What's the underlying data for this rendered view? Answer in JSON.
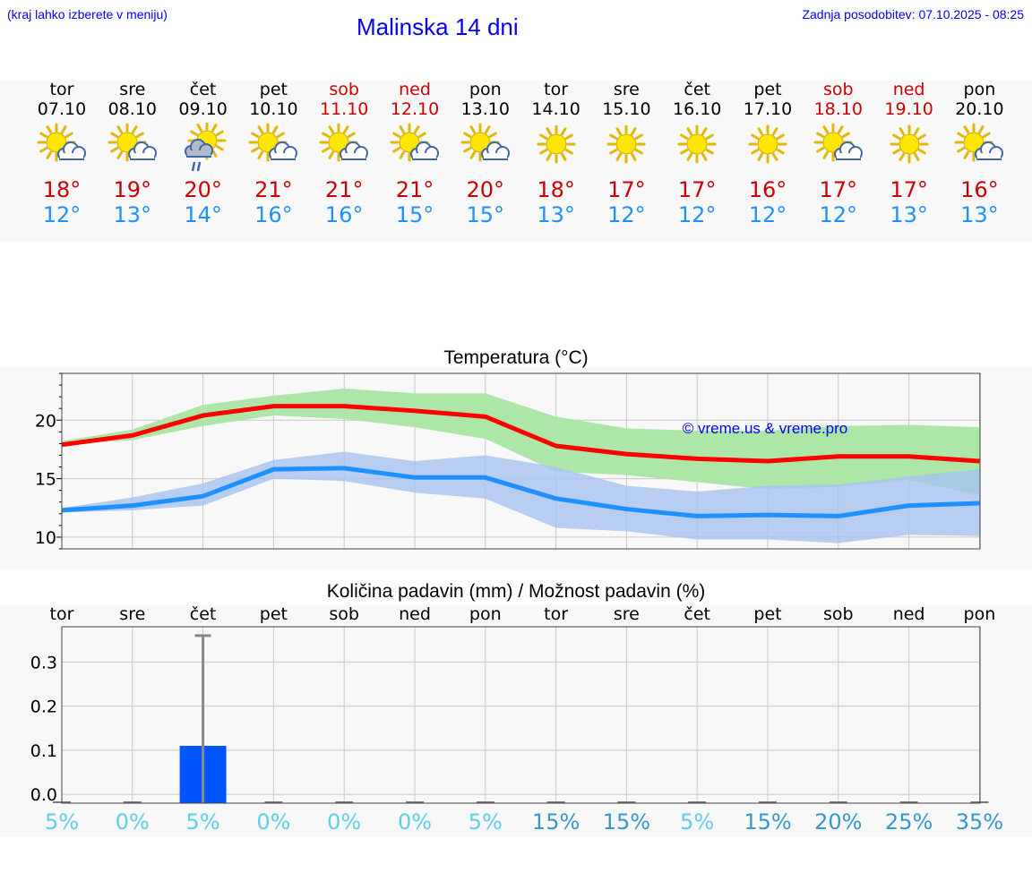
{
  "header": {
    "hint": "(kraj lahko izberete v meniju)",
    "title": "Malinska 14 dni",
    "updated": "Zadnja posodobitev: 07.10.2025 - 08:25"
  },
  "days": [
    {
      "name": "tor",
      "date": "07.10",
      "weekend": false,
      "icon": "sun-cloud-icon",
      "max": "18°",
      "min": "12°"
    },
    {
      "name": "sre",
      "date": "08.10",
      "weekend": false,
      "icon": "sun-cloud-icon",
      "max": "19°",
      "min": "13°"
    },
    {
      "name": "čet",
      "date": "09.10",
      "weekend": false,
      "icon": "sun-rain-cloud-icon",
      "max": "20°",
      "min": "14°"
    },
    {
      "name": "pet",
      "date": "10.10",
      "weekend": false,
      "icon": "sun-cloud-icon",
      "max": "21°",
      "min": "16°"
    },
    {
      "name": "sob",
      "date": "11.10",
      "weekend": true,
      "icon": "sun-cloud-icon",
      "max": "21°",
      "min": "16°"
    },
    {
      "name": "ned",
      "date": "12.10",
      "weekend": true,
      "icon": "sun-cloud-icon",
      "max": "21°",
      "min": "15°"
    },
    {
      "name": "pon",
      "date": "13.10",
      "weekend": false,
      "icon": "sun-cloud-icon",
      "max": "20°",
      "min": "15°"
    },
    {
      "name": "tor",
      "date": "14.10",
      "weekend": false,
      "icon": "sun-icon",
      "max": "18°",
      "min": "13°"
    },
    {
      "name": "sre",
      "date": "15.10",
      "weekend": false,
      "icon": "sun-icon",
      "max": "17°",
      "min": "12°"
    },
    {
      "name": "čet",
      "date": "16.10",
      "weekend": false,
      "icon": "sun-icon",
      "max": "17°",
      "min": "12°"
    },
    {
      "name": "pet",
      "date": "17.10",
      "weekend": false,
      "icon": "sun-icon",
      "max": "16°",
      "min": "12°"
    },
    {
      "name": "sob",
      "date": "18.10",
      "weekend": true,
      "icon": "sun-cloud-icon",
      "max": "17°",
      "min": "12°"
    },
    {
      "name": "ned",
      "date": "19.10",
      "weekend": true,
      "icon": "sun-icon",
      "max": "17°",
      "min": "13°"
    },
    {
      "name": "pon",
      "date": "20.10",
      "weekend": false,
      "icon": "sun-cloud-icon",
      "max": "16°",
      "min": "13°"
    }
  ],
  "colors": {
    "max": "#ff0000",
    "min": "#1e90ff",
    "max_band": "#a8e6a3",
    "min_band": "#a8c2f0",
    "precip": "#0055ff",
    "prob_low": "#5bd0e6",
    "prob_high": "#3399cc"
  },
  "chart_data": [
    {
      "type": "line",
      "title": "Temperatura (°C)",
      "watermark": "© vreme.us & vreme.pro",
      "ylim": [
        9,
        24
      ],
      "yticks": [
        10,
        15,
        20
      ],
      "grid": true,
      "series": [
        {
          "values": [
            17.9,
            18.7,
            20.4,
            21.2,
            21.2,
            20.8,
            20.3,
            17.8,
            17.1,
            16.7,
            16.5,
            16.9,
            16.9,
            16.5
          ]
        },
        {
          "values": [
            12.3,
            12.7,
            13.5,
            15.8,
            15.9,
            15.1,
            15.1,
            13.3,
            12.4,
            11.8,
            11.9,
            11.8,
            12.7,
            12.9
          ]
        }
      ],
      "bands": [
        {
          "lower": [
            17.9,
            18.3,
            19.5,
            20.4,
            20.1,
            19.4,
            18.4,
            15.6,
            15.3,
            14.7,
            14.1,
            14.3,
            14.9,
            13.6
          ],
          "upper": [
            18.2,
            19.2,
            21.3,
            22.1,
            22.7,
            22.3,
            22.3,
            20.3,
            19.3,
            19.1,
            19.1,
            19.5,
            19.6,
            19.4
          ]
        },
        {
          "lower": [
            12.1,
            12.3,
            12.7,
            15.0,
            14.8,
            13.8,
            13.3,
            10.8,
            10.5,
            9.8,
            9.8,
            9.5,
            10.2,
            10.1
          ],
          "upper": [
            12.5,
            13.4,
            14.6,
            16.6,
            17.3,
            16.5,
            17.0,
            16.0,
            14.4,
            13.9,
            14.4,
            14.5,
            15.2,
            15.8
          ]
        }
      ]
    },
    {
      "type": "bar",
      "title": "Količina padavin (mm) / Možnost padavin (%)",
      "categories": [
        "tor",
        "sre",
        "čet",
        "pet",
        "sob",
        "ned",
        "pon",
        "tor",
        "sre",
        "čet",
        "pet",
        "sob",
        "ned",
        "pon"
      ],
      "values": [
        0,
        0,
        0.11,
        0,
        0,
        0,
        0,
        0,
        0,
        0,
        0,
        0,
        0,
        0
      ],
      "error_max": [
        0,
        0,
        0.36,
        0,
        0,
        0,
        0,
        0,
        0,
        0,
        0,
        0,
        0,
        0
      ],
      "ylim": [
        -0.02,
        0.38
      ],
      "yticks": [
        "0.0",
        "0.1",
        "0.2",
        "0.3"
      ],
      "probability": [
        "5%",
        "0%",
        "5%",
        "0%",
        "0%",
        "0%",
        "5%",
        "15%",
        "15%",
        "5%",
        "15%",
        "20%",
        "25%",
        "35%"
      ],
      "grid": true
    }
  ]
}
